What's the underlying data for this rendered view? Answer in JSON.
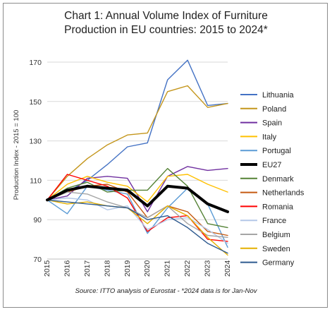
{
  "chart_data": {
    "type": "line",
    "title_lines": [
      "Chart 1: Annual Volume Index of Furniture",
      "Production in EU countries: 2015 to 2024*"
    ],
    "ylabel": "Production Index - 2015 = 100",
    "xlabel": "",
    "x": [
      "2015",
      "2016",
      "2017",
      "2018",
      "2019",
      "2020",
      "2021",
      "2022",
      "2023",
      "2024"
    ],
    "ylim": [
      70,
      170
    ],
    "yticks": [
      "70",
      "90",
      "110",
      "130",
      "150",
      "170"
    ],
    "ytick_values": [
      70,
      90,
      110,
      130,
      150,
      170
    ],
    "grid": "horizontal",
    "legend_position": "right",
    "source": "Source: ITTO analysis of Eurostat - *2024 data is for Jan-Nov",
    "series": [
      {
        "name": "Lithuania",
        "color": "#4472c4",
        "width": 1.4,
        "values": [
          100,
          104,
          110,
          118,
          127,
          129,
          161,
          171,
          148,
          149
        ]
      },
      {
        "name": "Poland",
        "color": "#c4961c",
        "width": 1.4,
        "values": [
          100,
          112,
          121,
          128,
          133,
          134,
          155,
          158,
          147,
          149
        ]
      },
      {
        "name": "Spain",
        "color": "#7030a0",
        "width": 1.4,
        "values": [
          100,
          102,
          111,
          112,
          111,
          94,
          112,
          117,
          115,
          116
        ]
      },
      {
        "name": "Italy",
        "color": "#ffc000",
        "width": 1.4,
        "values": [
          100,
          108,
          112,
          109,
          107,
          99,
          112,
          113,
          108,
          104
        ]
      },
      {
        "name": "Portugal",
        "color": "#5b9bd5",
        "width": 1.4,
        "values": [
          100,
          93,
          107,
          105,
          103,
          83,
          96,
          106,
          98,
          76
        ]
      },
      {
        "name": "EU27",
        "color": "#000000",
        "width": 4,
        "values": [
          100,
          105,
          107,
          106,
          105,
          97,
          107,
          106,
          98,
          94
        ]
      },
      {
        "name": "Denmark",
        "color": "#548235",
        "width": 1.4,
        "values": [
          100,
          106,
          109,
          104,
          105,
          105,
          116,
          107,
          88,
          86
        ]
      },
      {
        "name": "Netherlands",
        "color": "#c55a11",
        "width": 1.4,
        "values": [
          100,
          104,
          107,
          108,
          104,
          91,
          97,
          94,
          84,
          82
        ]
      },
      {
        "name": "Romania",
        "color": "#ff0000",
        "width": 1.4,
        "values": [
          100,
          113,
          110,
          107,
          101,
          84,
          91,
          92,
          80,
          79
        ]
      },
      {
        "name": "France",
        "color": "#b4c7e7",
        "width": 1.4,
        "values": [
          100,
          101,
          100,
          95,
          97,
          85,
          90,
          91,
          85,
          78
        ]
      },
      {
        "name": "Belgium",
        "color": "#a5a5a5",
        "width": 1.4,
        "values": [
          100,
          104,
          103,
          99,
          96,
          91,
          97,
          88,
          82,
          81
        ]
      },
      {
        "name": "Sweden",
        "color": "#e4b000",
        "width": 1.4,
        "values": [
          100,
          98,
          99,
          97,
          96,
          88,
          97,
          92,
          81,
          72
        ]
      },
      {
        "name": "Germany",
        "color": "#2e5a8f",
        "width": 1.4,
        "values": [
          100,
          99,
          98,
          97,
          96,
          90,
          92,
          86,
          78,
          73
        ]
      }
    ]
  }
}
